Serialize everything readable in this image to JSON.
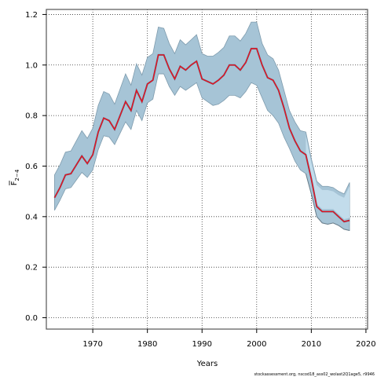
{
  "chart_data": {
    "type": "line",
    "xlabel": "Years",
    "ylabel_main": "F",
    "ylabel_sub": "2−4",
    "footer": "stockassessment.org, nscod18_ass02_wolast2Q1age5, r9946",
    "xlim": [
      1961.5,
      2020.3
    ],
    "ylim": [
      -0.045,
      1.22
    ],
    "x_ticks": [
      "1970",
      "1980",
      "1990",
      "2000",
      "2010",
      "2020"
    ],
    "y_ticks": [
      "0.0",
      "0.2",
      "0.4",
      "0.6",
      "0.8",
      "1.0",
      "1.2"
    ],
    "grid": true,
    "colors": {
      "band": "#a6c4d6",
      "band_edge": "#7e9bad",
      "band_light": "#c9e2f0",
      "line": "#e8111f",
      "line_dark": "#4d6d85",
      "grid": "#333333"
    },
    "years": [
      1963,
      1964,
      1965,
      1966,
      1967,
      1968,
      1969,
      1970,
      1971,
      1972,
      1973,
      1974,
      1975,
      1976,
      1977,
      1978,
      1979,
      1980,
      1981,
      1982,
      1983,
      1984,
      1985,
      1986,
      1987,
      1988,
      1989,
      1990,
      1991,
      1992,
      1993,
      1994,
      1995,
      1996,
      1997,
      1998,
      1999,
      2000,
      2001,
      2002,
      2003,
      2004,
      2005,
      2006,
      2007,
      2008,
      2009,
      2010,
      2011,
      2012,
      2013,
      2014,
      2015,
      2016,
      2017
    ],
    "series": [
      {
        "role": "estimate",
        "values": [
          0.475,
          0.515,
          0.565,
          0.57,
          0.605,
          0.64,
          0.61,
          0.645,
          0.735,
          0.79,
          0.78,
          0.745,
          0.8,
          0.855,
          0.82,
          0.9,
          0.855,
          0.925,
          0.94,
          1.04,
          1.04,
          0.985,
          0.945,
          0.995,
          0.98,
          1.0,
          1.015,
          0.945,
          0.935,
          0.925,
          0.94,
          0.96,
          1.0,
          1.0,
          0.98,
          1.01,
          1.065,
          1.065,
          1.0,
          0.95,
          0.94,
          0.9,
          0.83,
          0.75,
          0.7,
          0.66,
          0.645,
          0.55,
          0.44,
          0.42,
          0.42,
          0.42,
          0.4,
          0.38,
          0.385
        ]
      },
      {
        "role": "lower",
        "values": [
          0.425,
          0.465,
          0.51,
          0.515,
          0.545,
          0.575,
          0.555,
          0.585,
          0.665,
          0.72,
          0.715,
          0.685,
          0.73,
          0.775,
          0.745,
          0.82,
          0.78,
          0.85,
          0.865,
          0.965,
          0.965,
          0.915,
          0.88,
          0.915,
          0.9,
          0.915,
          0.93,
          0.87,
          0.855,
          0.84,
          0.845,
          0.86,
          0.88,
          0.88,
          0.87,
          0.895,
          0.93,
          0.92,
          0.87,
          0.82,
          0.8,
          0.77,
          0.715,
          0.67,
          0.62,
          0.585,
          0.57,
          0.49,
          0.4,
          0.375,
          0.37,
          0.375,
          0.365,
          0.35,
          0.345
        ]
      },
      {
        "role": "upper",
        "values": [
          0.565,
          0.605,
          0.655,
          0.66,
          0.7,
          0.74,
          0.71,
          0.75,
          0.84,
          0.895,
          0.885,
          0.845,
          0.905,
          0.965,
          0.92,
          1.005,
          0.96,
          1.03,
          1.045,
          1.15,
          1.145,
          1.085,
          1.045,
          1.1,
          1.08,
          1.1,
          1.12,
          1.045,
          1.035,
          1.035,
          1.05,
          1.07,
          1.115,
          1.115,
          1.095,
          1.125,
          1.17,
          1.17,
          1.085,
          1.04,
          1.025,
          0.98,
          0.9,
          0.82,
          0.775,
          0.74,
          0.735,
          0.63,
          0.54,
          0.52,
          0.52,
          0.515,
          0.5,
          0.49,
          0.535
        ]
      }
    ]
  }
}
